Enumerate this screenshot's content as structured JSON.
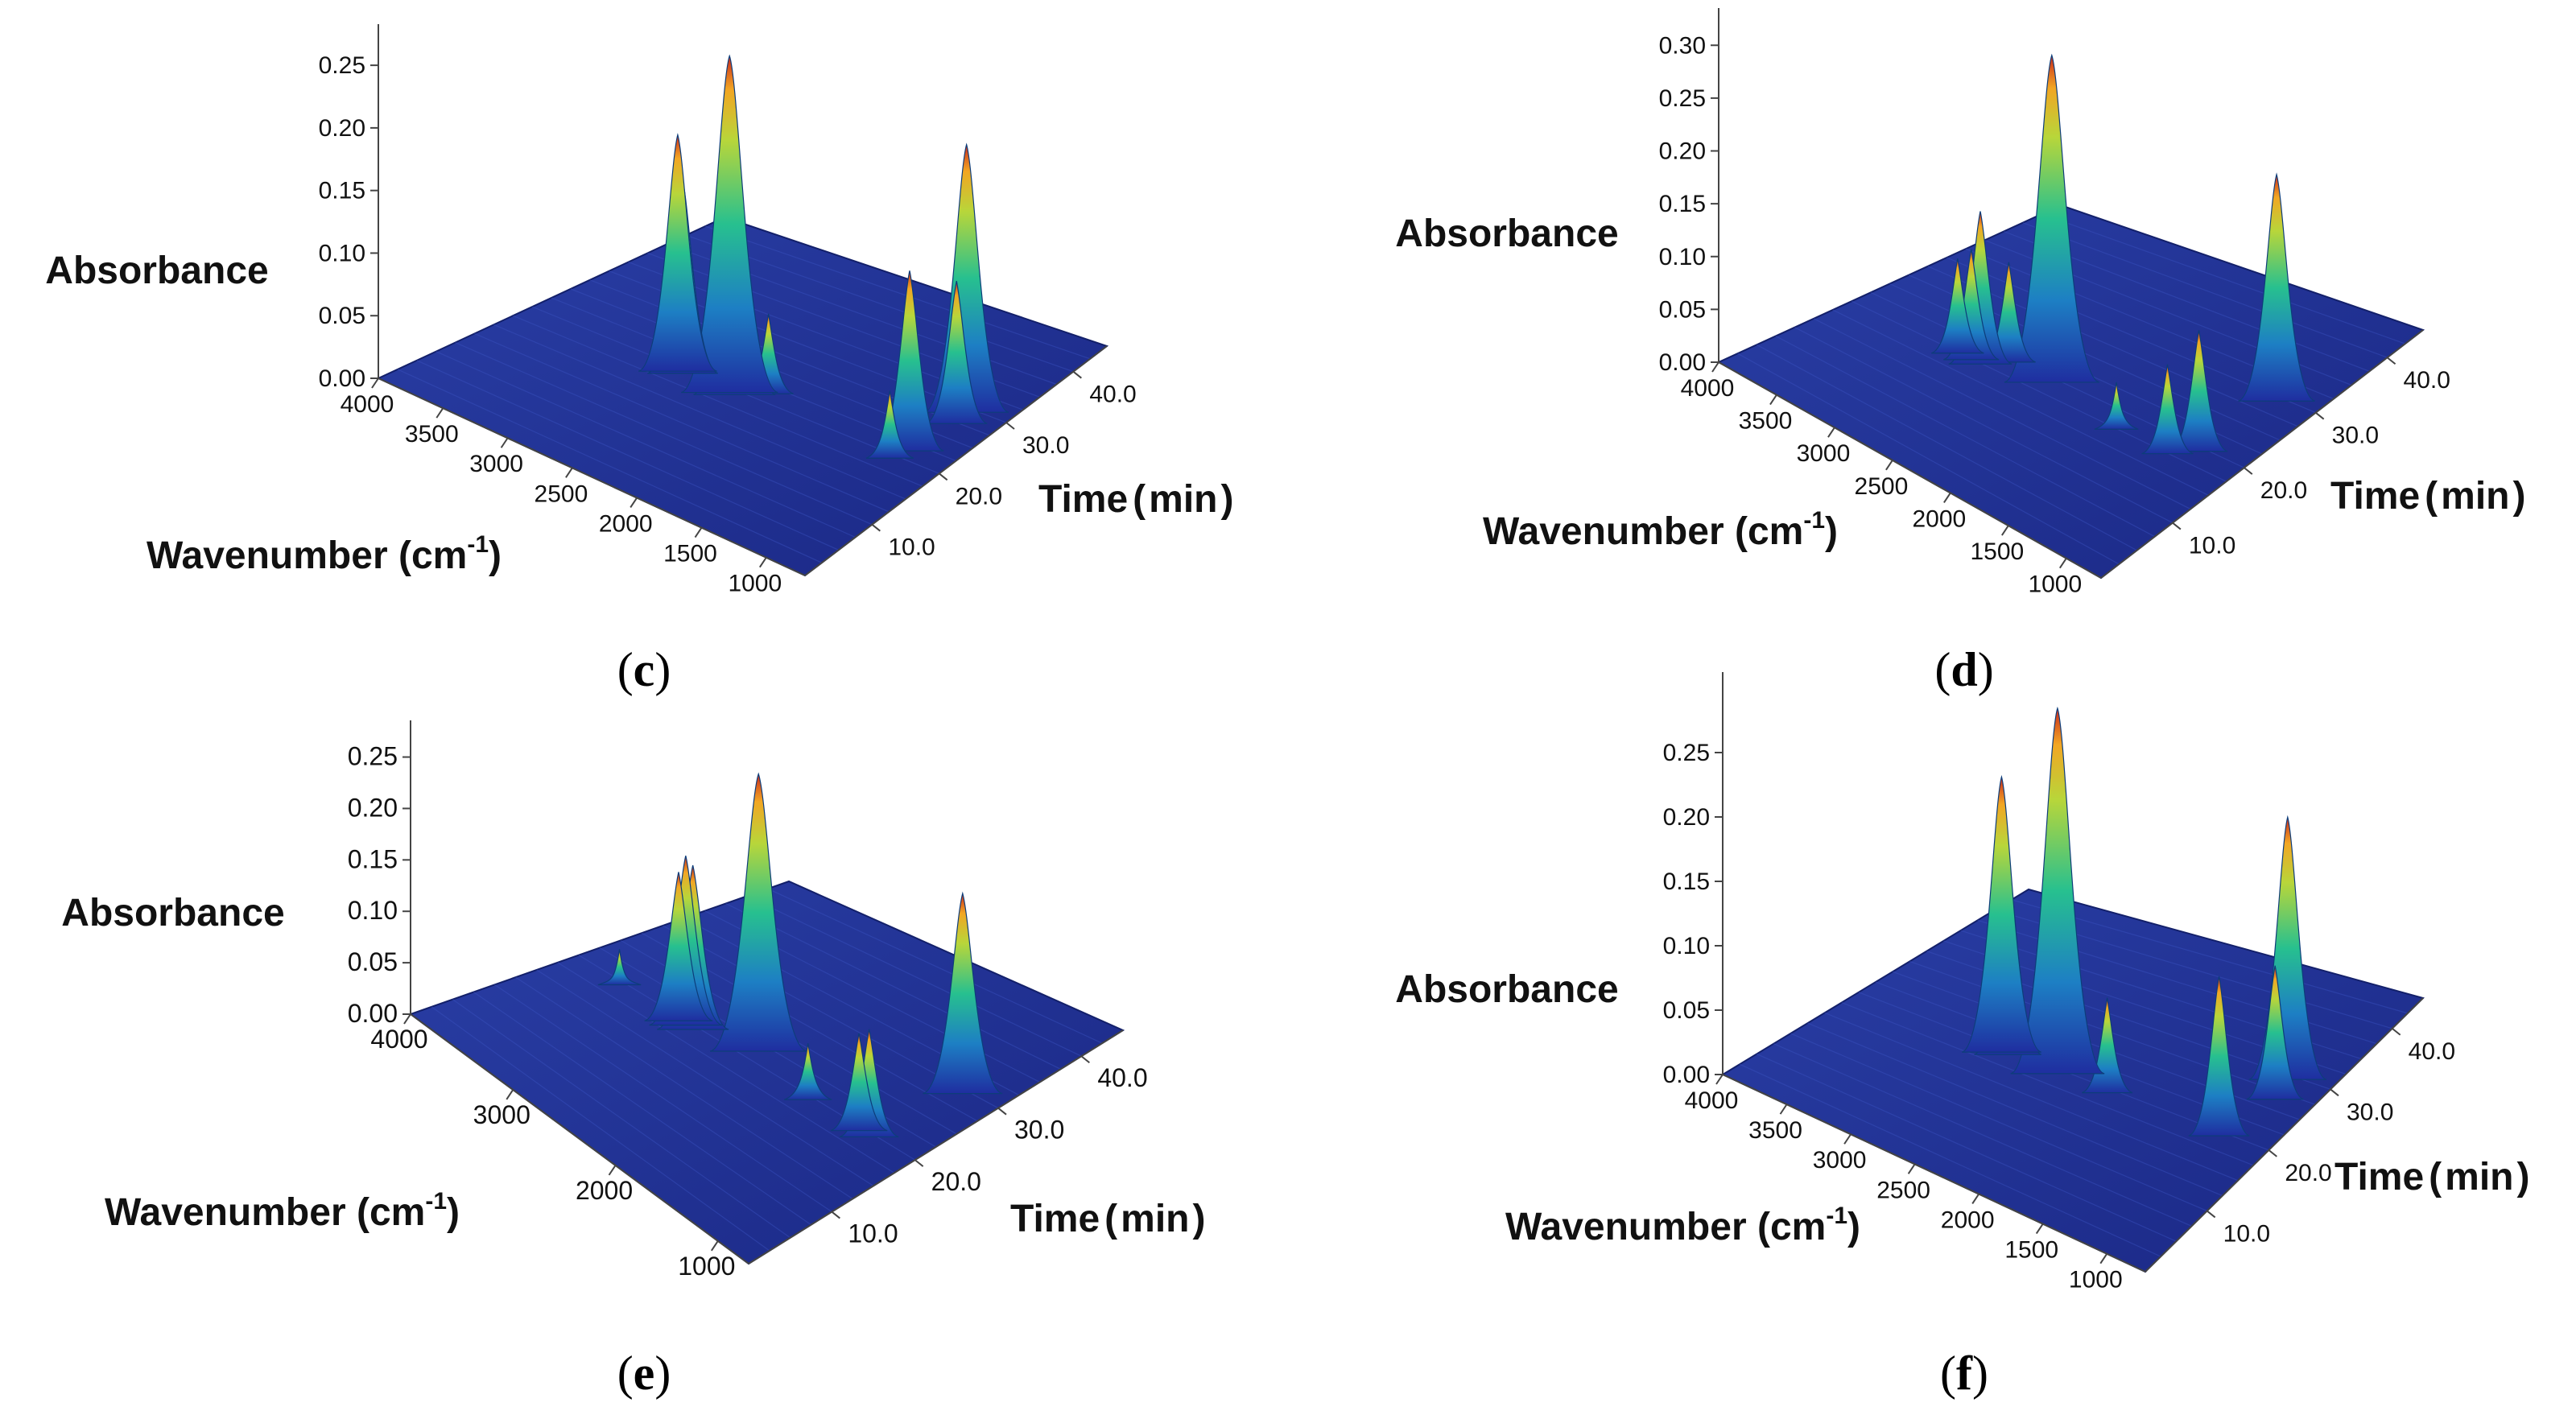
{
  "figure": {
    "panels": [
      {
        "label": "(c)",
        "label_parts": [
          "(",
          "c",
          ")"
        ]
      },
      {
        "label": "(d)",
        "label_parts": [
          "(",
          "d",
          ")"
        ]
      },
      {
        "label": "(e)",
        "label_parts": [
          "(",
          "e",
          ")"
        ]
      },
      {
        "label": "(f)",
        "label_parts": [
          "(",
          "f",
          ")"
        ]
      }
    ]
  },
  "chart_data": [
    {
      "panel": "c",
      "type": "surface3d",
      "zlabel": "Absorbance",
      "xlabel": "Wavenumber (cm-1)",
      "xlabel_parts": [
        "Wavenumber (cm",
        "-1",
        ")"
      ],
      "ylabel": "Time (min)",
      "ylabel_parts": [
        "Time",
        "(",
        "min",
        ")"
      ],
      "x_ticks": [
        "4000",
        "3500",
        "3000",
        "2500",
        "2000",
        "1500",
        "1000"
      ],
      "y_ticks": [
        "10.0",
        "20.0",
        "30.0",
        "40.0"
      ],
      "z_ticks": [
        "0.00",
        "0.05",
        "0.10",
        "0.15",
        "0.20",
        "0.25"
      ],
      "zlim": [
        0,
        0.27
      ],
      "xlim": [
        4000,
        700
      ],
      "ylim": [
        0,
        45
      ],
      "peaks": [
        {
          "wavenumber": 2400,
          "time": 20,
          "absorbance": 0.265
        },
        {
          "wavenumber": 2360,
          "time": 20,
          "absorbance": 0.2
        },
        {
          "wavenumber": 2820,
          "time": 20,
          "absorbance": 0.185
        },
        {
          "wavenumber": 2780,
          "time": 20,
          "absorbance": 0.15
        },
        {
          "wavenumber": 2200,
          "time": 22,
          "absorbance": 0.06
        },
        {
          "wavenumber": 1050,
          "time": 22,
          "absorbance": 0.14
        },
        {
          "wavenumber": 1030,
          "time": 30,
          "absorbance": 0.21
        },
        {
          "wavenumber": 1000,
          "time": 28,
          "absorbance": 0.11
        },
        {
          "wavenumber": 1100,
          "time": 20,
          "absorbance": 0.05
        }
      ]
    },
    {
      "panel": "d",
      "type": "surface3d",
      "zlabel": "Absorbance",
      "xlabel": "Wavenumber (cm-1)",
      "xlabel_parts": [
        "Wavenumber (cm",
        "-1",
        ")"
      ],
      "ylabel": "Time (min)",
      "ylabel_parts": [
        "Time",
        "(",
        "min",
        ")"
      ],
      "x_ticks": [
        "4000",
        "3500",
        "3000",
        "2500",
        "2000",
        "1500",
        "1000"
      ],
      "y_ticks": [
        "10.0",
        "20.0",
        "30.0",
        "40.0"
      ],
      "z_ticks": [
        "0.00",
        "0.05",
        "0.10",
        "0.15",
        "0.20",
        "0.25",
        "0.30"
      ],
      "zlim": [
        0,
        0.32
      ],
      "xlim": [
        4000,
        700
      ],
      "ylim": [
        0,
        45
      ],
      "peaks": [
        {
          "wavenumber": 2400,
          "time": 20,
          "absorbance": 0.305
        },
        {
          "wavenumber": 2900,
          "time": 18,
          "absorbance": 0.14
        },
        {
          "wavenumber": 2980,
          "time": 18,
          "absorbance": 0.1
        },
        {
          "wavenumber": 3100,
          "time": 18,
          "absorbance": 0.085
        },
        {
          "wavenumber": 2780,
          "time": 20,
          "absorbance": 0.09
        },
        {
          "wavenumber": 1050,
          "time": 30,
          "absorbance": 0.21
        },
        {
          "wavenumber": 1100,
          "time": 20,
          "absorbance": 0.11
        },
        {
          "wavenumber": 1250,
          "time": 18,
          "absorbance": 0.08
        },
        {
          "wavenumber": 1700,
          "time": 18,
          "absorbance": 0.04
        }
      ]
    },
    {
      "panel": "e",
      "type": "surface3d",
      "zlabel": "Absorbance",
      "xlabel": "Wavenumber (cm-1)",
      "xlabel_parts": [
        "Wavenumber (cm",
        "-1",
        ")"
      ],
      "ylabel": "Time (min)",
      "ylabel_parts": [
        "Time",
        "(",
        "min",
        ")"
      ],
      "x_ticks": [
        "4000",
        "3000",
        "2000",
        "1000"
      ],
      "y_ticks": [
        "10.0",
        "20.0",
        "30.0",
        "40.0"
      ],
      "z_ticks": [
        "0.00",
        "0.05",
        "0.10",
        "0.15",
        "0.20",
        "0.25"
      ],
      "zlim": [
        0,
        0.27
      ],
      "xlim": [
        4000,
        700
      ],
      "ylim": [
        0,
        45
      ],
      "peaks": [
        {
          "wavenumber": 2400,
          "time": 22,
          "absorbance": 0.265
        },
        {
          "wavenumber": 2950,
          "time": 20,
          "absorbance": 0.16
        },
        {
          "wavenumber": 2880,
          "time": 20,
          "absorbance": 0.155
        },
        {
          "wavenumber": 3020,
          "time": 20,
          "absorbance": 0.14
        },
        {
          "wavenumber": 3600,
          "time": 20,
          "absorbance": 0.03
        },
        {
          "wavenumber": 1050,
          "time": 30,
          "absorbance": 0.19
        },
        {
          "wavenumber": 1150,
          "time": 20,
          "absorbance": 0.1
        },
        {
          "wavenumber": 1250,
          "time": 20,
          "absorbance": 0.09
        },
        {
          "wavenumber": 1750,
          "time": 20,
          "absorbance": 0.05
        }
      ]
    },
    {
      "panel": "f",
      "type": "surface3d",
      "zlabel": "Absorbance",
      "xlabel": "Wavenumber (cm-1)",
      "xlabel_parts": [
        "Wavenumber (cm",
        "-1",
        ")"
      ],
      "ylabel": "Time (min)",
      "ylabel_parts": [
        "Time",
        "(",
        "min",
        ")"
      ],
      "x_ticks": [
        "4000",
        "3500",
        "3000",
        "2500",
        "2000",
        "1500",
        "1000"
      ],
      "y_ticks": [
        "10.0",
        "20.0",
        "30.0",
        "40.0"
      ],
      "z_ticks": [
        "0.00",
        "0.05",
        "0.10",
        "0.15",
        "0.20",
        "0.25"
      ],
      "zlim": [
        0,
        0.3
      ],
      "xlim": [
        4000,
        700
      ],
      "ylim": [
        0,
        45
      ],
      "peaks": [
        {
          "wavenumber": 2400,
          "time": 20,
          "absorbance": 0.28
        },
        {
          "wavenumber": 2850,
          "time": 20,
          "absorbance": 0.21
        },
        {
          "wavenumber": 2800,
          "time": 20,
          "absorbance": 0.15
        },
        {
          "wavenumber": 2000,
          "time": 20,
          "absorbance": 0.07
        },
        {
          "wavenumber": 1050,
          "time": 30,
          "absorbance": 0.2
        },
        {
          "wavenumber": 1100,
          "time": 20,
          "absorbance": 0.12
        },
        {
          "wavenumber": 1000,
          "time": 27,
          "absorbance": 0.1
        }
      ]
    }
  ]
}
